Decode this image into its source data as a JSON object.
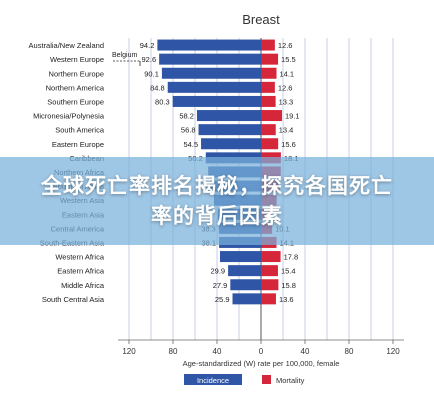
{
  "banner": {
    "title": "全球死亡率排名揭秘，探究各国死亡率的背后因素"
  },
  "chart_data": {
    "type": "bar",
    "title": "Breast",
    "xlabel": "Age-standardized (W) rate per 100,000, female",
    "xlim": [
      -130,
      130
    ],
    "x_ticks": [
      120,
      80,
      40,
      0,
      40,
      80,
      120
    ],
    "grid": true,
    "legend_position": "bottom",
    "annotation": "Belgium",
    "colors": {
      "incidence": "#2f56a6",
      "mortality": "#d6263a",
      "grid": "#b9c3dc"
    },
    "categories": [
      "Australia/New Zealand",
      "Western Europe",
      "Northern Europe",
      "Northern America",
      "Southern Europe",
      "Micronesia/Polynesia",
      "South America",
      "Eastern Europe",
      "Caribbean",
      "Northern Africa",
      "Southern Africa",
      "Western Asia",
      "Eastern Asia",
      "Central America",
      "South-Eastern Asia",
      "Western Africa",
      "Eastern Africa",
      "Middle Africa",
      "South Central Asia"
    ],
    "series": [
      {
        "name": "Incidence",
        "values": [
          94.2,
          92.6,
          90.1,
          84.8,
          80.3,
          58.2,
          56.8,
          54.5,
          50.2,
          48.0,
          46.0,
          42.8,
          39.2,
          38.3,
          38.1,
          37.3,
          29.9,
          27.9,
          25.9
        ],
        "labels": [
          "94.2",
          "92.6",
          "90.1",
          "84.8",
          "80.3",
          "58.2",
          "56.8",
          "54.5",
          "50.2",
          "",
          "",
          "",
          "",
          "38.3",
          "38.1",
          "",
          "29.9",
          "27.9",
          "25.9"
        ]
      },
      {
        "name": "Mortality",
        "values": [
          12.6,
          15.5,
          14.1,
          12.6,
          13.3,
          19.1,
          13.4,
          15.6,
          18.1,
          18.0,
          17.0,
          14.2,
          9.8,
          10.1,
          14.1,
          17.8,
          15.4,
          15.8,
          13.6
        ],
        "labels": [
          "12.6",
          "15.5",
          "14.1",
          "12.6",
          "13.3",
          "19.1",
          "13.4",
          "15.6",
          "18.1",
          "",
          "",
          "",
          "",
          "10.1",
          "14.1",
          "17.8",
          "15.4",
          "15.8",
          "13.6"
        ]
      }
    ]
  }
}
